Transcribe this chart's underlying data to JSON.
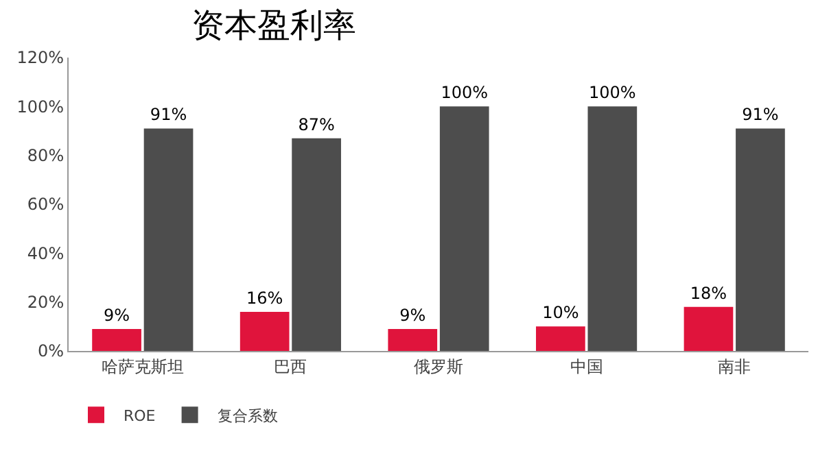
{
  "chart_data": {
    "type": "bar",
    "title": "资本盈利率",
    "categories": [
      "哈萨克斯坦",
      "巴西",
      "俄罗斯",
      "中国",
      "南非"
    ],
    "series": [
      {
        "name": "ROE",
        "color": "#e0143c",
        "values": [
          9,
          16,
          9,
          10,
          18
        ],
        "value_labels": [
          "9%",
          "16%",
          "9%",
          "10%",
          "18%"
        ]
      },
      {
        "name": "复合系数",
        "color": "#4d4d4d",
        "values": [
          91,
          87,
          100,
          100,
          91
        ],
        "value_labels": [
          "91%",
          "87%",
          "100%",
          "100%",
          "91%"
        ]
      }
    ],
    "ylim": [
      0,
      120
    ],
    "yticks": [
      {
        "value": 0,
        "label": "0%"
      },
      {
        "value": 20,
        "label": "20%"
      },
      {
        "value": 40,
        "label": "40%"
      },
      {
        "value": 60,
        "label": "60%"
      },
      {
        "value": 80,
        "label": "80%"
      },
      {
        "value": 100,
        "label": "100%"
      },
      {
        "value": 120,
        "label": "120%"
      }
    ],
    "legend": "bottom left"
  }
}
